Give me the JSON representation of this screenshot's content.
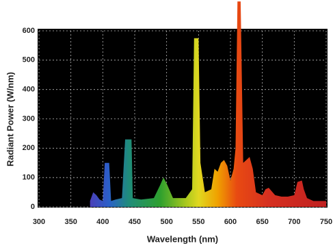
{
  "chart_data": {
    "type": "area",
    "xlabel": "Wavelength (nm)",
    "ylabel": "Radiant Power (W/nm)",
    "x": [
      380,
      385,
      390,
      395,
      400,
      403,
      410,
      413,
      420,
      430,
      435,
      445,
      447,
      460,
      480,
      490,
      495,
      500,
      510,
      530,
      540,
      543,
      550,
      553,
      560,
      570,
      575,
      580,
      585,
      590,
      595,
      600,
      605,
      608,
      611,
      616,
      620,
      625,
      630,
      635,
      640,
      650,
      655,
      660,
      670,
      680,
      690,
      700,
      705,
      712,
      715,
      720,
      730,
      740,
      750
    ],
    "values": [
      20,
      50,
      40,
      25,
      20,
      150,
      150,
      20,
      25,
      30,
      230,
      230,
      30,
      25,
      30,
      75,
      100,
      80,
      30,
      30,
      60,
      575,
      575,
      150,
      50,
      60,
      130,
      120,
      150,
      160,
      140,
      90,
      130,
      200,
      700,
      700,
      150,
      160,
      170,
      130,
      50,
      40,
      60,
      65,
      40,
      35,
      35,
      40,
      85,
      90,
      60,
      30,
      20,
      20,
      20
    ],
    "gradient": [
      {
        "value": 380,
        "color": "#4a3fb8"
      },
      {
        "value": 410,
        "color": "#2a60c8"
      },
      {
        "value": 440,
        "color": "#1f8c7c"
      },
      {
        "value": 490,
        "color": "#2ea02e"
      },
      {
        "value": 530,
        "color": "#a8c81e"
      },
      {
        "value": 550,
        "color": "#e0d820"
      },
      {
        "value": 580,
        "color": "#f0a000"
      },
      {
        "value": 610,
        "color": "#e84a12"
      },
      {
        "value": 660,
        "color": "#d63020"
      },
      {
        "value": 750,
        "color": "#c02020"
      }
    ],
    "background": "#000000",
    "xlim": [
      300,
      750
    ],
    "xticks": [
      300,
      350,
      400,
      450,
      500,
      550,
      600,
      650,
      700,
      750
    ],
    "ylim": [
      0,
      600
    ],
    "yticks": [
      0,
      100,
      200,
      300,
      400,
      500,
      600
    ],
    "grid": true
  }
}
